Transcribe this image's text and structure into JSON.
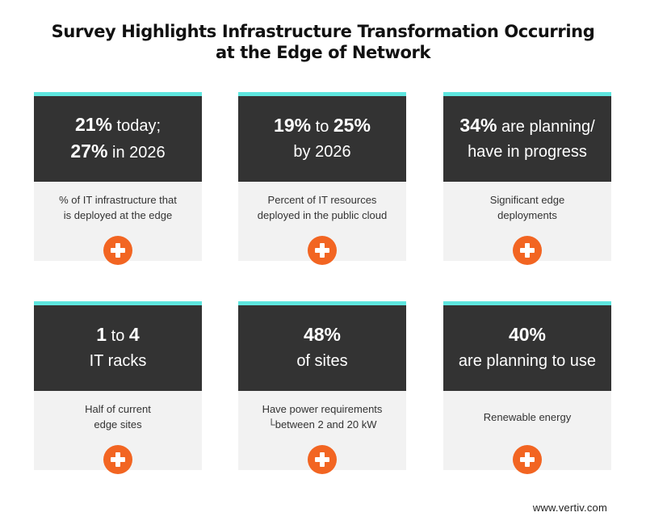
{
  "title": {
    "line1": "Survey Highlights Infrastructure Transformation Occurring",
    "line2": "at the Edge of Network"
  },
  "cards": [
    {
      "stat_line1_bold": "21%",
      "stat_line1_rest": " today;",
      "stat_line2_bold": "27%",
      "stat_line2_rest": " in 2026",
      "desc_line1": "% of IT infrastructure that",
      "desc_line2": "is deployed at the edge"
    },
    {
      "stat_line1_bold": "19%",
      "stat_line1_mid": " to ",
      "stat_line1_bold2": "25%",
      "stat_line2_rest": "by 2026",
      "desc_line1": "Percent of IT resources",
      "desc_line2": "deployed in the public cloud"
    },
    {
      "stat_line1_bold": "34%",
      "stat_line1_rest": " are planning/",
      "stat_line2_rest": "have in progress",
      "desc_line1": "Significant edge",
      "desc_line2": "deployments"
    },
    {
      "stat_line1_bold": "1",
      "stat_line1_mid": " to ",
      "stat_line1_bold2": "4",
      "stat_line2_rest": "IT racks",
      "desc_line1": "Half of current",
      "desc_line2": "edge sites"
    },
    {
      "stat_line1_bold": "48%",
      "stat_line2_rest": "of sites",
      "desc_line1": "Have power requirements",
      "desc_line2": "└between 2 and 20 kW"
    },
    {
      "stat_line1_bold": "40%",
      "stat_line2_rest": "are planning to use",
      "desc_line1": "Renewable energy",
      "desc_line2": ""
    }
  ],
  "footer": {
    "url": "www.vertiv.com"
  },
  "colors": {
    "accent": "#5ee6df",
    "dark": "#333333",
    "panel": "#f2f2f2",
    "plus": "#f26522"
  },
  "icons": {
    "expand": "plus-icon"
  }
}
